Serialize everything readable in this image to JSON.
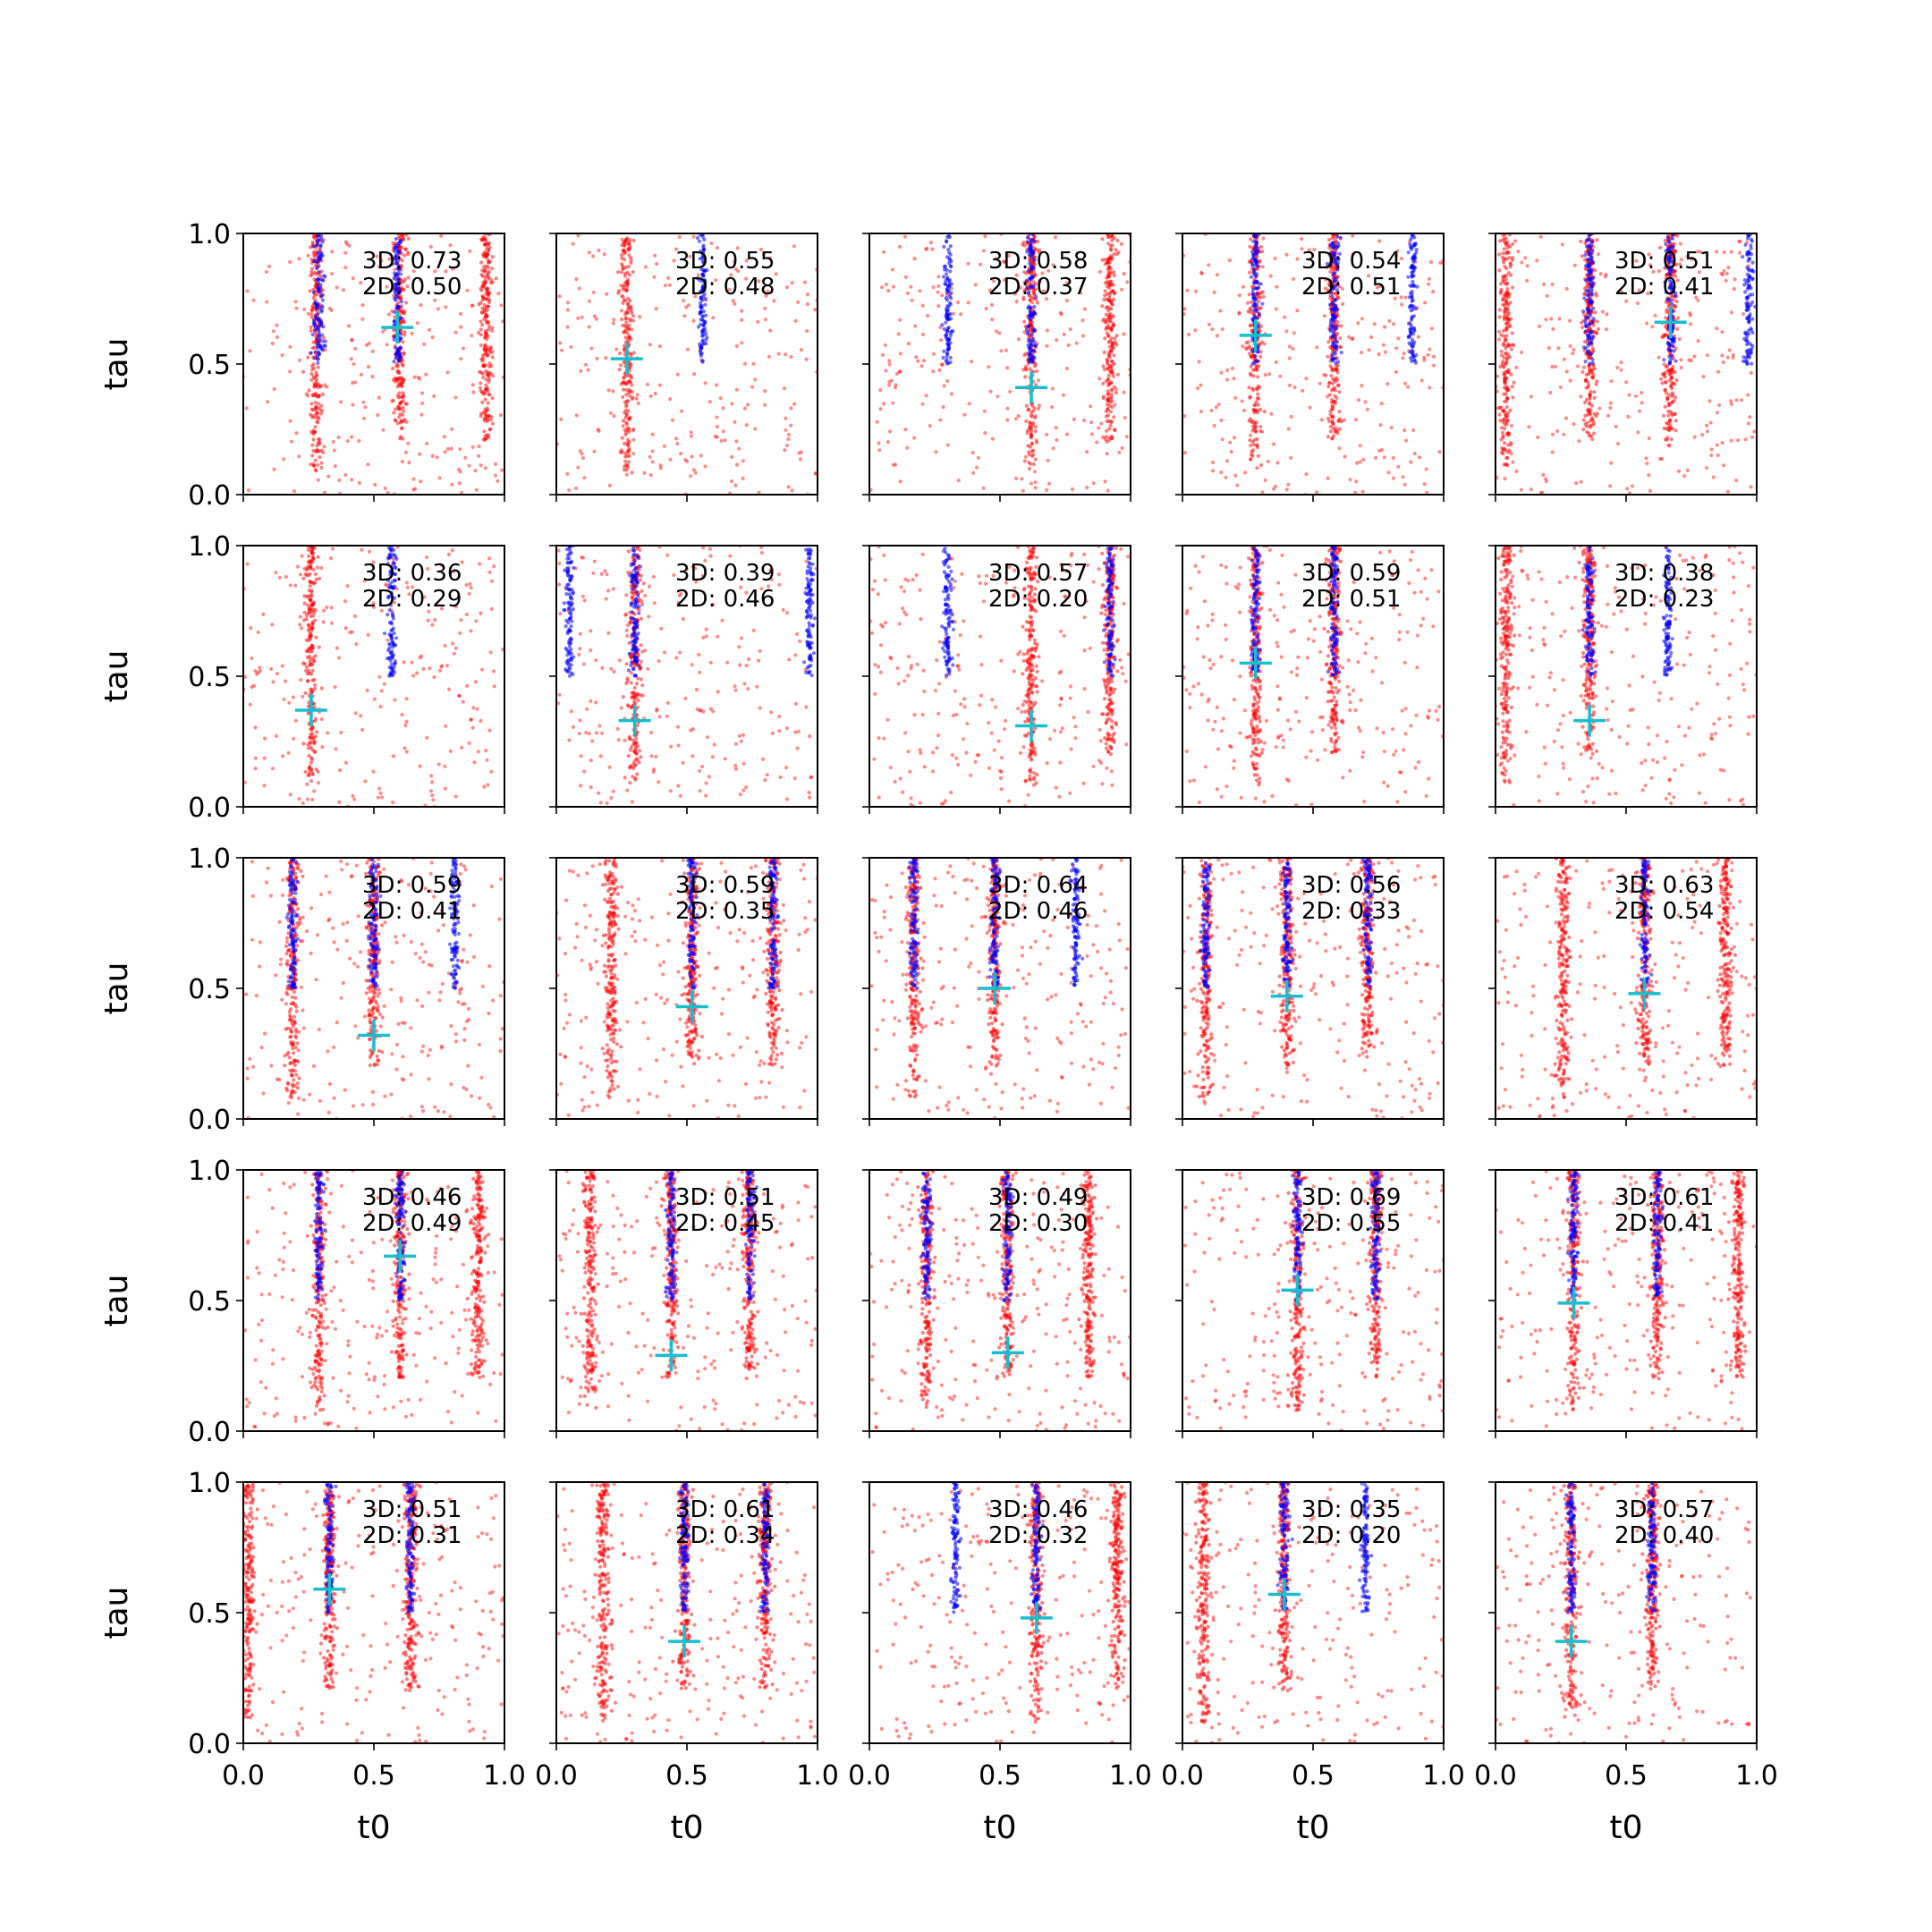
{
  "figure": {
    "panel_rows": 5,
    "panel_cols": 5,
    "axis_labels": {
      "x": "t0",
      "y": "tau"
    },
    "tick_labels": [
      "0.0",
      "0.5",
      "1.0"
    ],
    "colors": {
      "red_points": "#ff0000",
      "blue_points": "#0000ff",
      "marker": "#17becf",
      "axes": "#000000"
    }
  },
  "chart_data": [
    {
      "type": "scatter",
      "xlabel": "",
      "ylabel": "tau",
      "xlim": [
        0,
        1
      ],
      "ylim": [
        0,
        1
      ],
      "annotations": [
        "3D: 0.73",
        "2D: 0.50"
      ],
      "marker": {
        "x": 0.59,
        "y": 0.64
      },
      "clusters": [
        {
          "color": "red",
          "x": 0.28
        },
        {
          "color": "red",
          "x": 0.6
        },
        {
          "color": "red",
          "x": 0.93
        },
        {
          "color": "blue",
          "x": 0.29
        },
        {
          "color": "blue",
          "x": 0.59
        }
      ]
    },
    {
      "type": "scatter",
      "xlabel": "",
      "ylabel": "",
      "xlim": [
        0,
        1
      ],
      "ylim": [
        0,
        1
      ],
      "annotations": [
        "3D: 0.55",
        "2D: 0.48"
      ],
      "marker": {
        "x": 0.27,
        "y": 0.52
      },
      "clusters": [
        {
          "color": "red",
          "x": 0.27
        },
        {
          "color": "blue",
          "x": 0.56
        }
      ]
    },
    {
      "type": "scatter",
      "xlabel": "",
      "ylabel": "",
      "xlim": [
        0,
        1
      ],
      "ylim": [
        0,
        1
      ],
      "annotations": [
        "3D: 0.58",
        "2D: 0.37"
      ],
      "marker": {
        "x": 0.62,
        "y": 0.41
      },
      "clusters": [
        {
          "color": "red",
          "x": 0.62
        },
        {
          "color": "red",
          "x": 0.92
        },
        {
          "color": "blue",
          "x": 0.3
        },
        {
          "color": "blue",
          "x": 0.62
        }
      ]
    },
    {
      "type": "scatter",
      "xlabel": "",
      "ylabel": "",
      "xlim": [
        0,
        1
      ],
      "ylim": [
        0,
        1
      ],
      "annotations": [
        "3D: 0.54",
        "2D: 0.51"
      ],
      "marker": {
        "x": 0.28,
        "y": 0.61
      },
      "clusters": [
        {
          "color": "red",
          "x": 0.28
        },
        {
          "color": "red",
          "x": 0.58
        },
        {
          "color": "blue",
          "x": 0.28
        },
        {
          "color": "blue",
          "x": 0.58
        },
        {
          "color": "blue",
          "x": 0.88
        }
      ]
    },
    {
      "type": "scatter",
      "xlabel": "",
      "ylabel": "",
      "xlim": [
        0,
        1
      ],
      "ylim": [
        0,
        1
      ],
      "annotations": [
        "3D: 0.51",
        "2D: 0.41"
      ],
      "marker": {
        "x": 0.67,
        "y": 0.66
      },
      "clusters": [
        {
          "color": "red",
          "x": 0.04
        },
        {
          "color": "red",
          "x": 0.36
        },
        {
          "color": "red",
          "x": 0.67
        },
        {
          "color": "blue",
          "x": 0.36
        },
        {
          "color": "blue",
          "x": 0.67
        },
        {
          "color": "blue",
          "x": 0.97
        }
      ]
    },
    {
      "type": "scatter",
      "xlabel": "",
      "ylabel": "tau",
      "xlim": [
        0,
        1
      ],
      "ylim": [
        0,
        1
      ],
      "annotations": [
        "3D: 0.36",
        "2D: 0.29"
      ],
      "marker": {
        "x": 0.26,
        "y": 0.37
      },
      "clusters": [
        {
          "color": "red",
          "x": 0.26
        },
        {
          "color": "blue",
          "x": 0.57
        }
      ]
    },
    {
      "type": "scatter",
      "xlabel": "",
      "ylabel": "",
      "xlim": [
        0,
        1
      ],
      "ylim": [
        0,
        1
      ],
      "annotations": [
        "3D: 0.39",
        "2D: 0.46"
      ],
      "marker": {
        "x": 0.3,
        "y": 0.33
      },
      "clusters": [
        {
          "color": "red",
          "x": 0.3
        },
        {
          "color": "blue",
          "x": 0.3
        },
        {
          "color": "blue",
          "x": 0.05
        },
        {
          "color": "blue",
          "x": 0.97
        }
      ]
    },
    {
      "type": "scatter",
      "xlabel": "",
      "ylabel": "",
      "xlim": [
        0,
        1
      ],
      "ylim": [
        0,
        1
      ],
      "annotations": [
        "3D: 0.57",
        "2D: 0.20"
      ],
      "marker": {
        "x": 0.62,
        "y": 0.31
      },
      "clusters": [
        {
          "color": "red",
          "x": 0.62
        },
        {
          "color": "red",
          "x": 0.92
        },
        {
          "color": "blue",
          "x": 0.3
        },
        {
          "color": "blue",
          "x": 0.92
        }
      ]
    },
    {
      "type": "scatter",
      "xlabel": "",
      "ylabel": "",
      "xlim": [
        0,
        1
      ],
      "ylim": [
        0,
        1
      ],
      "annotations": [
        "3D: 0.59",
        "2D: 0.51"
      ],
      "marker": {
        "x": 0.28,
        "y": 0.55
      },
      "clusters": [
        {
          "color": "red",
          "x": 0.28
        },
        {
          "color": "red",
          "x": 0.58
        },
        {
          "color": "blue",
          "x": 0.28
        },
        {
          "color": "blue",
          "x": 0.58
        }
      ]
    },
    {
      "type": "scatter",
      "xlabel": "",
      "ylabel": "",
      "xlim": [
        0,
        1
      ],
      "ylim": [
        0,
        1
      ],
      "annotations": [
        "3D: 0.38",
        "2D: 0.23"
      ],
      "marker": {
        "x": 0.36,
        "y": 0.33
      },
      "clusters": [
        {
          "color": "red",
          "x": 0.04
        },
        {
          "color": "red",
          "x": 0.36
        },
        {
          "color": "blue",
          "x": 0.36
        },
        {
          "color": "blue",
          "x": 0.66
        }
      ]
    },
    {
      "type": "scatter",
      "xlabel": "",
      "ylabel": "tau",
      "xlim": [
        0,
        1
      ],
      "ylim": [
        0,
        1
      ],
      "annotations": [
        "3D: 0.59",
        "2D: 0.41"
      ],
      "marker": {
        "x": 0.5,
        "y": 0.32
      },
      "clusters": [
        {
          "color": "red",
          "x": 0.19
        },
        {
          "color": "red",
          "x": 0.5
        },
        {
          "color": "blue",
          "x": 0.19
        },
        {
          "color": "blue",
          "x": 0.5
        },
        {
          "color": "blue",
          "x": 0.81
        }
      ]
    },
    {
      "type": "scatter",
      "xlabel": "",
      "ylabel": "",
      "xlim": [
        0,
        1
      ],
      "ylim": [
        0,
        1
      ],
      "annotations": [
        "3D: 0.59",
        "2D: 0.35"
      ],
      "marker": {
        "x": 0.52,
        "y": 0.43
      },
      "clusters": [
        {
          "color": "red",
          "x": 0.21
        },
        {
          "color": "red",
          "x": 0.52
        },
        {
          "color": "red",
          "x": 0.83
        },
        {
          "color": "blue",
          "x": 0.52
        },
        {
          "color": "blue",
          "x": 0.83
        }
      ]
    },
    {
      "type": "scatter",
      "xlabel": "",
      "ylabel": "",
      "xlim": [
        0,
        1
      ],
      "ylim": [
        0,
        1
      ],
      "annotations": [
        "3D: 0.64",
        "2D: 0.46"
      ],
      "marker": {
        "x": 0.48,
        "y": 0.5
      },
      "clusters": [
        {
          "color": "red",
          "x": 0.17
        },
        {
          "color": "red",
          "x": 0.48
        },
        {
          "color": "blue",
          "x": 0.17
        },
        {
          "color": "blue",
          "x": 0.48
        },
        {
          "color": "blue",
          "x": 0.79
        }
      ]
    },
    {
      "type": "scatter",
      "xlabel": "",
      "ylabel": "",
      "xlim": [
        0,
        1
      ],
      "ylim": [
        0,
        1
      ],
      "annotations": [
        "3D: 0.56",
        "2D: 0.33"
      ],
      "marker": {
        "x": 0.4,
        "y": 0.47
      },
      "clusters": [
        {
          "color": "red",
          "x": 0.09
        },
        {
          "color": "red",
          "x": 0.4
        },
        {
          "color": "red",
          "x": 0.71
        },
        {
          "color": "blue",
          "x": 0.09
        },
        {
          "color": "blue",
          "x": 0.4
        },
        {
          "color": "blue",
          "x": 0.71
        }
      ]
    },
    {
      "type": "scatter",
      "xlabel": "",
      "ylabel": "",
      "xlim": [
        0,
        1
      ],
      "ylim": [
        0,
        1
      ],
      "annotations": [
        "3D: 0.63",
        "2D: 0.54"
      ],
      "marker": {
        "x": 0.57,
        "y": 0.48
      },
      "clusters": [
        {
          "color": "red",
          "x": 0.26
        },
        {
          "color": "red",
          "x": 0.57
        },
        {
          "color": "red",
          "x": 0.88
        },
        {
          "color": "blue",
          "x": 0.57
        }
      ]
    },
    {
      "type": "scatter",
      "xlabel": "",
      "ylabel": "tau",
      "xlim": [
        0,
        1
      ],
      "ylim": [
        0,
        1
      ],
      "annotations": [
        "3D: 0.46",
        "2D: 0.49"
      ],
      "marker": {
        "x": 0.6,
        "y": 0.67
      },
      "clusters": [
        {
          "color": "red",
          "x": 0.29
        },
        {
          "color": "red",
          "x": 0.6
        },
        {
          "color": "red",
          "x": 0.9
        },
        {
          "color": "blue",
          "x": 0.29
        },
        {
          "color": "blue",
          "x": 0.6
        }
      ]
    },
    {
      "type": "scatter",
      "xlabel": "",
      "ylabel": "",
      "xlim": [
        0,
        1
      ],
      "ylim": [
        0,
        1
      ],
      "annotations": [
        "3D: 0.51",
        "2D: 0.45"
      ],
      "marker": {
        "x": 0.44,
        "y": 0.29
      },
      "clusters": [
        {
          "color": "red",
          "x": 0.13
        },
        {
          "color": "red",
          "x": 0.44
        },
        {
          "color": "red",
          "x": 0.74
        },
        {
          "color": "blue",
          "x": 0.44
        },
        {
          "color": "blue",
          "x": 0.74
        }
      ]
    },
    {
      "type": "scatter",
      "xlabel": "",
      "ylabel": "",
      "xlim": [
        0,
        1
      ],
      "ylim": [
        0,
        1
      ],
      "annotations": [
        "3D: 0.49",
        "2D: 0.30"
      ],
      "marker": {
        "x": 0.53,
        "y": 0.3
      },
      "clusters": [
        {
          "color": "red",
          "x": 0.22
        },
        {
          "color": "red",
          "x": 0.53
        },
        {
          "color": "red",
          "x": 0.84
        },
        {
          "color": "blue",
          "x": 0.22
        },
        {
          "color": "blue",
          "x": 0.53
        }
      ]
    },
    {
      "type": "scatter",
      "xlabel": "",
      "ylabel": "",
      "xlim": [
        0,
        1
      ],
      "ylim": [
        0,
        1
      ],
      "annotations": [
        "3D: 0.69",
        "2D: 0.55"
      ],
      "marker": {
        "x": 0.44,
        "y": 0.54
      },
      "clusters": [
        {
          "color": "red",
          "x": 0.44
        },
        {
          "color": "red",
          "x": 0.74
        },
        {
          "color": "blue",
          "x": 0.44
        },
        {
          "color": "blue",
          "x": 0.74
        }
      ]
    },
    {
      "type": "scatter",
      "xlabel": "",
      "ylabel": "",
      "xlim": [
        0,
        1
      ],
      "ylim": [
        0,
        1
      ],
      "annotations": [
        "3D: 0.61",
        "2D: 0.41"
      ],
      "marker": {
        "x": 0.3,
        "y": 0.49
      },
      "clusters": [
        {
          "color": "red",
          "x": 0.3
        },
        {
          "color": "red",
          "x": 0.62
        },
        {
          "color": "red",
          "x": 0.93
        },
        {
          "color": "blue",
          "x": 0.3
        },
        {
          "color": "blue",
          "x": 0.62
        }
      ]
    },
    {
      "type": "scatter",
      "xlabel": "t0",
      "ylabel": "tau",
      "xlim": [
        0,
        1
      ],
      "ylim": [
        0,
        1
      ],
      "annotations": [
        "3D: 0.51",
        "2D: 0.31"
      ],
      "marker": {
        "x": 0.33,
        "y": 0.59
      },
      "clusters": [
        {
          "color": "red",
          "x": 0.02
        },
        {
          "color": "red",
          "x": 0.33
        },
        {
          "color": "red",
          "x": 0.64
        },
        {
          "color": "blue",
          "x": 0.33
        },
        {
          "color": "blue",
          "x": 0.64
        }
      ]
    },
    {
      "type": "scatter",
      "xlabel": "t0",
      "ylabel": "",
      "xlim": [
        0,
        1
      ],
      "ylim": [
        0,
        1
      ],
      "annotations": [
        "3D: 0.61",
        "2D: 0.34"
      ],
      "marker": {
        "x": 0.49,
        "y": 0.39
      },
      "clusters": [
        {
          "color": "red",
          "x": 0.18
        },
        {
          "color": "red",
          "x": 0.49
        },
        {
          "color": "red",
          "x": 0.8
        },
        {
          "color": "blue",
          "x": 0.49
        },
        {
          "color": "blue",
          "x": 0.8
        }
      ]
    },
    {
      "type": "scatter",
      "xlabel": "t0",
      "ylabel": "",
      "xlim": [
        0,
        1
      ],
      "ylim": [
        0,
        1
      ],
      "annotations": [
        "3D: 0.46",
        "2D: 0.32"
      ],
      "marker": {
        "x": 0.64,
        "y": 0.48
      },
      "clusters": [
        {
          "color": "red",
          "x": 0.64
        },
        {
          "color": "red",
          "x": 0.95
        },
        {
          "color": "blue",
          "x": 0.33
        },
        {
          "color": "blue",
          "x": 0.64
        }
      ]
    },
    {
      "type": "scatter",
      "xlabel": "t0",
      "ylabel": "",
      "xlim": [
        0,
        1
      ],
      "ylim": [
        0,
        1
      ],
      "annotations": [
        "3D: 0.35",
        "2D: 0.20"
      ],
      "marker": {
        "x": 0.39,
        "y": 0.57
      },
      "clusters": [
        {
          "color": "red",
          "x": 0.08
        },
        {
          "color": "red",
          "x": 0.39
        },
        {
          "color": "blue",
          "x": 0.39
        },
        {
          "color": "blue",
          "x": 0.7
        }
      ]
    },
    {
      "type": "scatter",
      "xlabel": "t0",
      "ylabel": "",
      "xlim": [
        0,
        1
      ],
      "ylim": [
        0,
        1
      ],
      "annotations": [
        "3D: 0.57",
        "2D: 0.40"
      ],
      "marker": {
        "x": 0.29,
        "y": 0.39
      },
      "clusters": [
        {
          "color": "red",
          "x": 0.29
        },
        {
          "color": "red",
          "x": 0.6
        },
        {
          "color": "blue",
          "x": 0.29
        },
        {
          "color": "blue",
          "x": 0.6
        }
      ]
    }
  ]
}
